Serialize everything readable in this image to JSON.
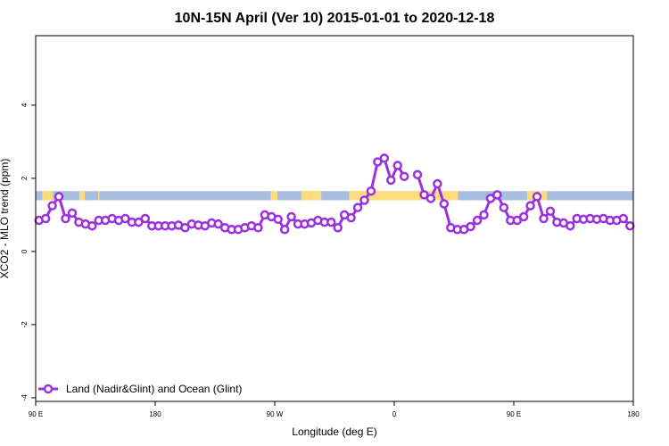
{
  "chart_data": {
    "type": "line",
    "title": "10N-15N April (Ver 10)   2015-01-01 to 2020-12-18",
    "xlabel": "Longitude (deg E)",
    "ylabel": "XCO2 - MLO trend (ppm)",
    "x_tick_values": [
      90,
      180,
      270,
      360,
      450,
      540
    ],
    "x_tick_labels": [
      "90 E",
      "180",
      "90 W",
      "0",
      "90 E",
      "180"
    ],
    "xlim": [
      90,
      540
    ],
    "y_tick_values": [
      -4,
      -2,
      0,
      2,
      4
    ],
    "y_tick_labels": [
      "-4",
      "-2",
      "0",
      "2",
      "4"
    ],
    "ylim": [
      -4.1,
      5.9
    ],
    "legend": {
      "position": "bottom-left",
      "label": "Land (Nadir&Glint) and Ocean (Glint)"
    },
    "colors": {
      "series": "#9b30e0",
      "ocean_band": "#a8bede",
      "land_band": "#fbdc7e",
      "axes": "#000000"
    },
    "band": {
      "y_bottom": 1.4,
      "y_top": 1.65
    },
    "land_segments": [
      [
        95,
        98
      ],
      [
        98,
        103
      ],
      [
        123,
        127
      ],
      [
        137,
        138
      ],
      [
        267,
        272
      ],
      [
        290,
        305
      ],
      [
        326,
        404
      ],
      [
        402,
        408
      ],
      [
        460,
        475
      ]
    ],
    "series": [
      {
        "name": "Land (Nadir&Glint) and Ocean (Glint)",
        "x": [
          92.5,
          97.5,
          102.5,
          107.5,
          112.5,
          117.5,
          122.5,
          127.5,
          132.5,
          137.5,
          142.5,
          147.5,
          152.5,
          157.5,
          162.5,
          167.5,
          172.5,
          177.5,
          182.5,
          187.5,
          192.5,
          197.5,
          202.5,
          207.5,
          212.5,
          217.5,
          222.5,
          227.5,
          232.5,
          237.5,
          242.5,
          247.5,
          252.5,
          257.5,
          262.5,
          267.5,
          272.5,
          277.5,
          282.5,
          287.5,
          292.5,
          297.5,
          302.5,
          307.5,
          312.5,
          317.5,
          322.5,
          327.5,
          332.5,
          337.5,
          342.5,
          347.5,
          352.5,
          357.5,
          362.5,
          367.5,
          372.5,
          377.5,
          382.5,
          387.5,
          392.5,
          397.5,
          402.5,
          407.5,
          412.5,
          417.5,
          422.5,
          427.5,
          432.5,
          437.5,
          442.5,
          447.5,
          452.5,
          457.5,
          462.5,
          467.5,
          472.5,
          477.5,
          482.5,
          487.5,
          492.5,
          497.5,
          502.5,
          507.5,
          512.5,
          517.5,
          522.5,
          527.5,
          532.5,
          537.5
        ],
        "y": [
          0.85,
          0.9,
          1.25,
          1.5,
          0.9,
          1.05,
          0.8,
          0.75,
          0.7,
          0.85,
          0.85,
          0.9,
          0.85,
          0.9,
          0.8,
          0.8,
          0.9,
          0.7,
          0.7,
          0.7,
          0.7,
          0.72,
          0.65,
          0.75,
          0.72,
          0.7,
          0.78,
          0.75,
          0.65,
          0.6,
          0.6,
          0.65,
          0.7,
          0.65,
          1.0,
          0.95,
          0.88,
          0.6,
          0.95,
          0.75,
          0.75,
          0.78,
          0.85,
          0.8,
          0.8,
          0.65,
          1.0,
          0.92,
          1.2,
          1.4,
          1.65,
          2.45,
          2.55,
          1.95,
          2.35,
          2.05,
          null,
          2.1,
          1.55,
          1.45,
          1.85,
          1.3,
          0.65,
          0.6,
          0.6,
          0.68,
          0.85,
          1.0,
          1.45,
          1.55,
          1.2,
          0.85,
          0.85,
          0.95,
          1.25,
          1.5,
          0.9,
          1.1,
          0.8,
          0.78,
          0.7,
          0.9,
          0.88,
          0.9,
          0.88,
          0.9,
          0.85,
          0.85,
          0.9,
          0.7
        ]
      }
    ]
  }
}
